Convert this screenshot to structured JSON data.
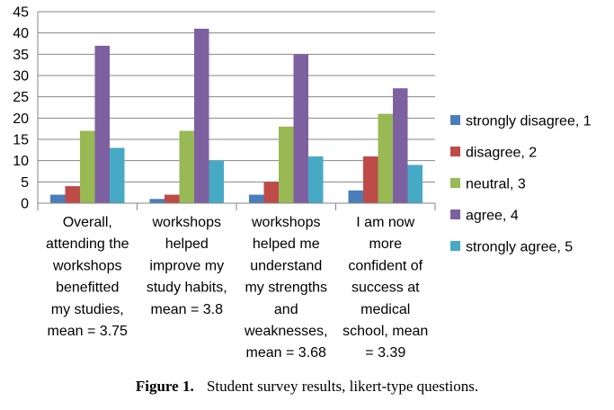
{
  "caption": {
    "label": "Figure 1.",
    "text": "Student survey results, likert-type questions."
  },
  "chart_data": {
    "type": "bar",
    "categories": [
      [
        "Overall,",
        "attending the",
        "workshops",
        "benefitted",
        "my studies,",
        "mean = 3.75"
      ],
      [
        "workshops",
        "helped",
        "improve my",
        "study habits,",
        "mean = 3.8"
      ],
      [
        "workshops",
        "helped me",
        "understand",
        "my strengths",
        "and",
        "weaknesses,",
        "mean = 3.68"
      ],
      [
        "I am now",
        "more",
        "confident of",
        "success at",
        "medical",
        "school, mean",
        "= 3.39"
      ]
    ],
    "series": [
      {
        "name": "strongly disagree, 1",
        "color": "#4a7ebb",
        "values": [
          2,
          1,
          2,
          3
        ]
      },
      {
        "name": "disagree, 2",
        "color": "#be4b48",
        "values": [
          4,
          2,
          5,
          11
        ]
      },
      {
        "name": "neutral, 3",
        "color": "#98b954",
        "values": [
          17,
          17,
          18,
          21
        ]
      },
      {
        "name": "agree, 4",
        "color": "#7d60a0",
        "values": [
          37,
          41,
          35,
          27
        ]
      },
      {
        "name": "strongly agree, 5",
        "color": "#46aac5",
        "values": [
          13,
          10,
          11,
          9
        ]
      }
    ],
    "ylim": [
      0,
      45
    ],
    "yticks": [
      0,
      5,
      10,
      15,
      20,
      25,
      30,
      35,
      40,
      45
    ],
    "grid": true,
    "legend": "right"
  }
}
